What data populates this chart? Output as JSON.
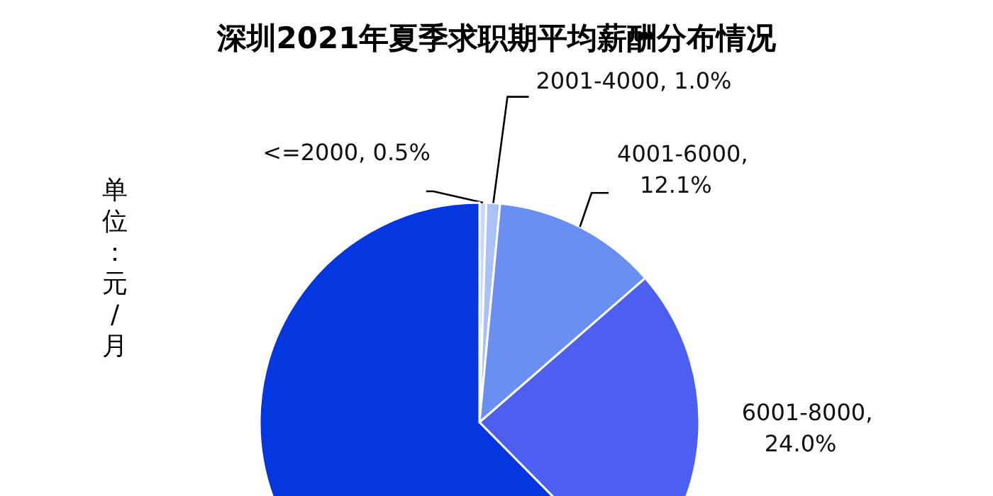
{
  "chart_data": {
    "type": "pie",
    "title": "深圳2021年夏季求职期平均薪酬分布情况",
    "ylabel": "单位：元/月",
    "categories": [
      "<=2000",
      "2001-4000",
      "4001-6000",
      "6001-8000",
      null
    ],
    "values": [
      0.5,
      1.0,
      12.1,
      24.0,
      62.4
    ],
    "colors": [
      "#c8d7f6",
      "#a9c1f6",
      "#6a8ff2",
      "#4c5ff0",
      "#0437e0"
    ],
    "value_labels": [
      ", 0.5%",
      ", 1.0%",
      ", 12.1%",
      ", 24.0%",
      null
    ],
    "legend": false
  }
}
